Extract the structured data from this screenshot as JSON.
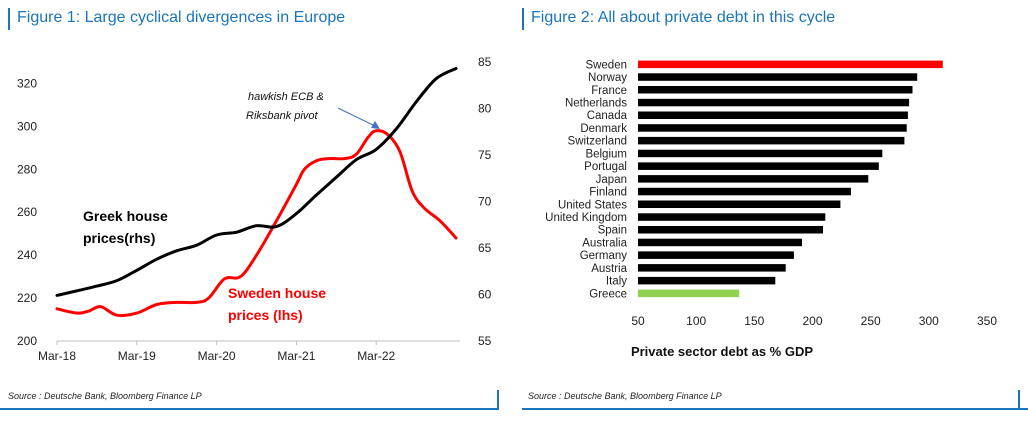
{
  "figure1": {
    "title": "Figure 1: Large cyclical divergences in Europe",
    "source": "Source : Deutsche Bank, Bloomberg Finance LP",
    "annotations": {
      "greek_line1": "Greek house",
      "greek_line2": "prices(rhs)",
      "sweden_line1": "Sweden house",
      "sweden_line2": "prices (lhs)",
      "pivot_line1": "hawkish ECB &",
      "pivot_line2": "Riksbank pivot"
    },
    "colors": {
      "sweden": "#ff0000",
      "greece": "#000000",
      "arrow": "#4472c4"
    }
  },
  "figure2": {
    "title": "Figure 2: All about private debt in this cycle",
    "source": "Source : Deutsche Bank, Bloomberg Finance LP",
    "colors": {
      "default": "#000000",
      "highlight_top": "#ff0000",
      "highlight_bottom": "#92d050"
    }
  },
  "chart_data": [
    {
      "type": "line",
      "title": "Figure 1: Large cyclical divergences in Europe",
      "x_tick_labels": [
        "Mar-18",
        "Mar-19",
        "Mar-20",
        "Mar-21",
        "Mar-22"
      ],
      "x_range": [
        2018.0,
        2023.05
      ],
      "left_axis": {
        "ticks": [
          200,
          220,
          240,
          260,
          280,
          300,
          320
        ],
        "ylim": [
          200,
          330
        ]
      },
      "right_axis": {
        "ticks": [
          55,
          60,
          65,
          70,
          75,
          80,
          85
        ],
        "ylim": [
          55,
          85
        ]
      },
      "series": [
        {
          "name": "Sweden house prices (lhs)",
          "axis": "left",
          "x": [
            2018.0,
            2018.25,
            2018.4,
            2018.55,
            2018.75,
            2019.0,
            2019.25,
            2019.5,
            2019.75,
            2019.9,
            2020.1,
            2020.3,
            2020.5,
            2020.75,
            2021.0,
            2021.1,
            2021.25,
            2021.4,
            2021.6,
            2021.75,
            2021.9,
            2022.0,
            2022.15,
            2022.3,
            2022.45,
            2022.6,
            2022.8,
            2023.0
          ],
          "values": [
            215,
            213,
            214,
            216,
            212,
            213,
            217,
            218,
            218,
            220,
            229,
            230,
            240,
            256,
            273,
            280,
            284,
            285,
            285,
            287,
            295,
            298,
            296,
            288,
            270,
            262,
            256,
            248
          ]
        },
        {
          "name": "Greek house prices (rhs)",
          "axis": "right",
          "x": [
            2018.0,
            2018.25,
            2018.5,
            2018.75,
            2019.0,
            2019.25,
            2019.5,
            2019.75,
            2020.0,
            2020.25,
            2020.5,
            2020.75,
            2021.0,
            2021.25,
            2021.5,
            2021.75,
            2022.0,
            2022.25,
            2022.5,
            2022.75,
            2023.0
          ],
          "values": [
            59.9,
            60.4,
            60.9,
            61.5,
            62.6,
            63.8,
            64.7,
            65.3,
            66.4,
            66.7,
            67.4,
            67.3,
            68.7,
            70.7,
            72.6,
            74.5,
            75.6,
            77.8,
            80.7,
            83.2,
            84.3
          ]
        }
      ]
    },
    {
      "type": "bar",
      "orientation": "horizontal",
      "title": "Figure 2: All about private debt in this cycle",
      "xlabel": "Private sector debt as % GDP",
      "xlim": [
        50,
        350
      ],
      "x_ticks": [
        50,
        100,
        150,
        200,
        250,
        300,
        350
      ],
      "categories": [
        "Sweden",
        "Norway",
        "France",
        "Netherlands",
        "Canada",
        "Denmark",
        "Switzerland",
        "Belgium",
        "Portugal",
        "Japan",
        "Finland",
        "United States",
        "United Kingdom",
        "Spain",
        "Australia",
        "Germany",
        "Austria",
        "Italy",
        "Greece"
      ],
      "values": [
        312,
        290,
        286,
        283,
        282,
        281,
        279,
        260,
        257,
        248,
        233,
        224,
        211,
        209,
        191,
        184,
        177,
        168,
        137
      ]
    }
  ]
}
